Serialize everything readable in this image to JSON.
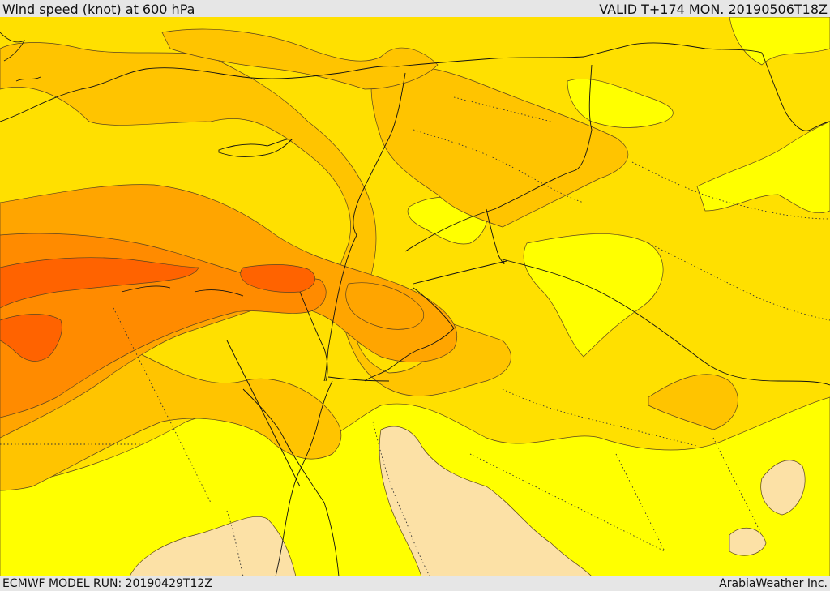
{
  "header": {
    "title": "Wind speed (knot) at 600 hPa",
    "valid": "VALID T+174 MON. 20190506T18Z"
  },
  "footer": {
    "model_run": "ECMWF MODEL RUN: 20190429T12Z",
    "credit": "ArabiaWeather Inc."
  },
  "map": {
    "palette": {
      "peach": "#fce1a6",
      "light_yellow": "#ffff00",
      "yellow": "#ffe000",
      "gold": "#ffc400",
      "light_orange": "#ffa500",
      "orange": "#ff8b00",
      "deep_orange": "#ff6300",
      "contour": "#5a4320",
      "border": "#111111"
    }
  }
}
